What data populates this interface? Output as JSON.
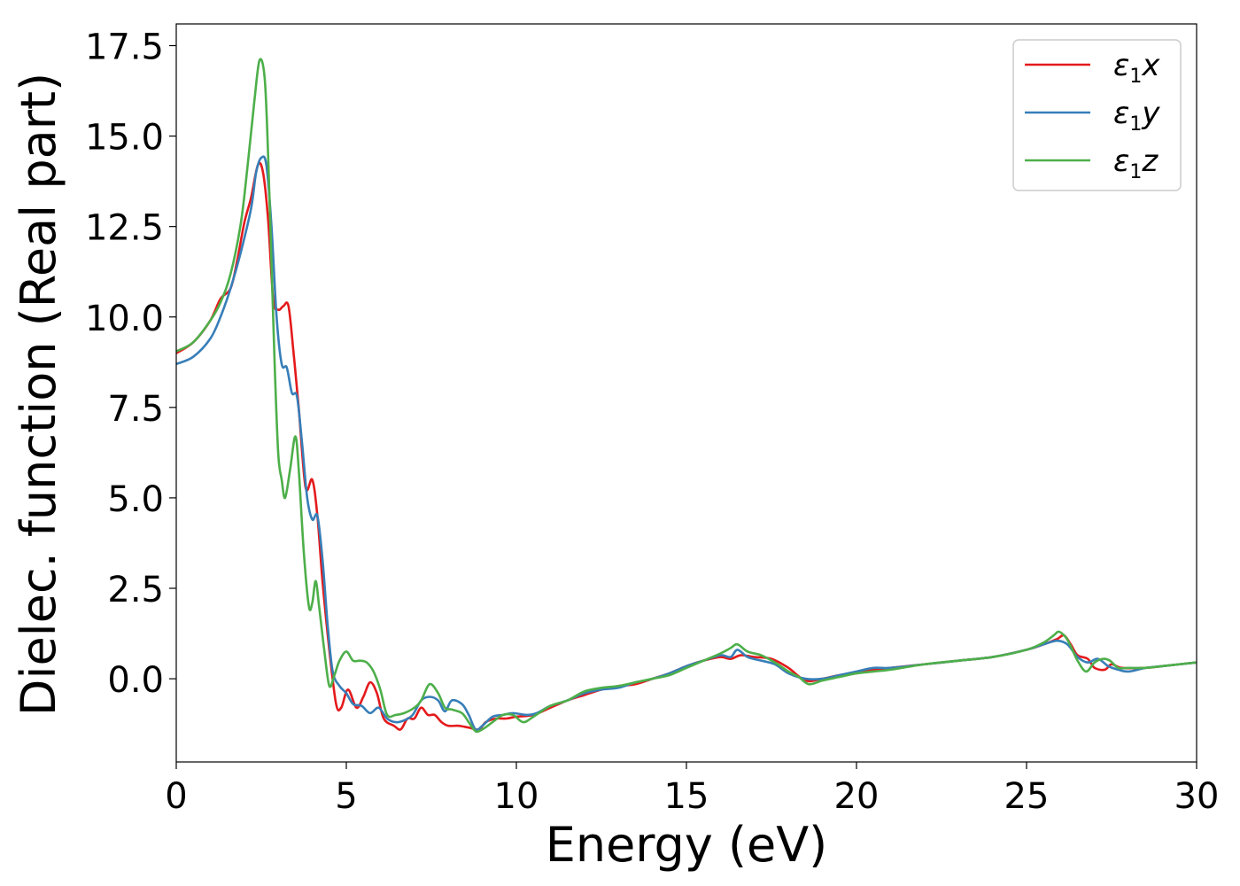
{
  "chart_data": {
    "type": "line",
    "xlabel": "Energy (eV)",
    "ylabel": "Dielec. function (Real part)",
    "xlim": [
      0,
      30
    ],
    "ylim": [
      -2.3,
      18.1
    ],
    "xticks": [
      0,
      5,
      10,
      15,
      20,
      25,
      30
    ],
    "xtick_labels": [
      "0",
      "5",
      "10",
      "15",
      "20",
      "25",
      "30"
    ],
    "yticks": [
      0.0,
      2.5,
      5.0,
      7.5,
      10.0,
      12.5,
      15.0,
      17.5
    ],
    "ytick_labels": [
      "0.0",
      "2.5",
      "5.0",
      "7.5",
      "10.0",
      "12.5",
      "15.0",
      "17.5"
    ],
    "grid": false,
    "legend_position": "top-right",
    "series": [
      {
        "name": "ε1x",
        "name_base": "ε",
        "name_sub": "1",
        "name_var": "x",
        "color": "#e41a1c",
        "points": [
          [
            0,
            9.0
          ],
          [
            0.5,
            9.3
          ],
          [
            1.0,
            9.9
          ],
          [
            1.3,
            10.5
          ],
          [
            1.6,
            10.8
          ],
          [
            1.8,
            11.6
          ],
          [
            2.0,
            12.6
          ],
          [
            2.2,
            13.3
          ],
          [
            2.4,
            14.2
          ],
          [
            2.55,
            14.0
          ],
          [
            2.7,
            12.7
          ],
          [
            2.85,
            10.5
          ],
          [
            3.0,
            10.2
          ],
          [
            3.15,
            10.3
          ],
          [
            3.3,
            10.3
          ],
          [
            3.45,
            9.0
          ],
          [
            3.6,
            7.5
          ],
          [
            3.8,
            5.3
          ],
          [
            4.0,
            5.5
          ],
          [
            4.15,
            4.5
          ],
          [
            4.3,
            2.7
          ],
          [
            4.5,
            0.8
          ],
          [
            4.7,
            -0.7
          ],
          [
            4.85,
            -0.8
          ],
          [
            5.05,
            -0.3
          ],
          [
            5.3,
            -0.8
          ],
          [
            5.5,
            -0.5
          ],
          [
            5.7,
            -0.1
          ],
          [
            5.9,
            -0.4
          ],
          [
            6.1,
            -1.1
          ],
          [
            6.4,
            -1.3
          ],
          [
            6.6,
            -1.4
          ],
          [
            6.8,
            -1.1
          ],
          [
            7.0,
            -1.1
          ],
          [
            7.2,
            -0.8
          ],
          [
            7.4,
            -1.0
          ],
          [
            7.6,
            -1.0
          ],
          [
            7.8,
            -1.2
          ],
          [
            8.0,
            -1.3
          ],
          [
            8.3,
            -1.3
          ],
          [
            8.6,
            -1.35
          ],
          [
            8.9,
            -1.4
          ],
          [
            9.1,
            -1.2
          ],
          [
            9.4,
            -1.1
          ],
          [
            9.7,
            -1.1
          ],
          [
            10.0,
            -1.05
          ],
          [
            10.5,
            -1.0
          ],
          [
            11.0,
            -0.8
          ],
          [
            11.5,
            -0.6
          ],
          [
            12.0,
            -0.45
          ],
          [
            12.5,
            -0.3
          ],
          [
            13.0,
            -0.2
          ],
          [
            13.5,
            -0.15
          ],
          [
            14.0,
            0.0
          ],
          [
            14.5,
            0.15
          ],
          [
            15.0,
            0.35
          ],
          [
            15.5,
            0.5
          ],
          [
            16.0,
            0.6
          ],
          [
            16.3,
            0.55
          ],
          [
            16.6,
            0.65
          ],
          [
            17.0,
            0.6
          ],
          [
            17.5,
            0.55
          ],
          [
            18.0,
            0.3
          ],
          [
            18.5,
            -0.05
          ],
          [
            19.0,
            0.0
          ],
          [
            19.5,
            0.1
          ],
          [
            20.0,
            0.15
          ],
          [
            20.5,
            0.25
          ],
          [
            21.0,
            0.3
          ],
          [
            22.0,
            0.4
          ],
          [
            23.0,
            0.5
          ],
          [
            24.0,
            0.6
          ],
          [
            25.0,
            0.8
          ],
          [
            25.5,
            0.95
          ],
          [
            25.9,
            1.1
          ],
          [
            26.1,
            1.2
          ],
          [
            26.3,
            0.95
          ],
          [
            26.5,
            0.65
          ],
          [
            26.8,
            0.55
          ],
          [
            27.0,
            0.3
          ],
          [
            27.3,
            0.25
          ],
          [
            27.5,
            0.4
          ],
          [
            27.8,
            0.3
          ],
          [
            28.5,
            0.3
          ],
          [
            29.0,
            0.35
          ],
          [
            30.0,
            0.45
          ]
        ]
      },
      {
        "name": "ε1y",
        "name_base": "ε",
        "name_sub": "1",
        "name_var": "y",
        "color": "#377eb8",
        "points": [
          [
            0,
            8.7
          ],
          [
            0.5,
            8.9
          ],
          [
            1.0,
            9.4
          ],
          [
            1.3,
            10.0
          ],
          [
            1.6,
            10.8
          ],
          [
            1.9,
            11.8
          ],
          [
            2.2,
            13.0
          ],
          [
            2.35,
            14.0
          ],
          [
            2.5,
            14.4
          ],
          [
            2.65,
            14.2
          ],
          [
            2.8,
            12.5
          ],
          [
            2.95,
            10.0
          ],
          [
            3.1,
            8.7
          ],
          [
            3.25,
            8.6
          ],
          [
            3.4,
            7.9
          ],
          [
            3.55,
            7.8
          ],
          [
            3.7,
            6.5
          ],
          [
            3.85,
            5.0
          ],
          [
            4.0,
            4.4
          ],
          [
            4.15,
            4.5
          ],
          [
            4.3,
            3.3
          ],
          [
            4.45,
            1.5
          ],
          [
            4.6,
            0.2
          ],
          [
            4.8,
            -0.2
          ],
          [
            5.0,
            -0.4
          ],
          [
            5.2,
            -0.7
          ],
          [
            5.45,
            -0.75
          ],
          [
            5.7,
            -0.95
          ],
          [
            5.95,
            -0.8
          ],
          [
            6.2,
            -1.1
          ],
          [
            6.45,
            -1.2
          ],
          [
            6.7,
            -1.15
          ],
          [
            6.95,
            -1.0
          ],
          [
            7.2,
            -0.6
          ],
          [
            7.45,
            -0.5
          ],
          [
            7.7,
            -0.6
          ],
          [
            7.9,
            -0.9
          ],
          [
            8.1,
            -0.6
          ],
          [
            8.4,
            -0.7
          ],
          [
            8.6,
            -1.0
          ],
          [
            8.8,
            -1.4
          ],
          [
            9.0,
            -1.3
          ],
          [
            9.3,
            -1.05
          ],
          [
            9.6,
            -1.0
          ],
          [
            9.9,
            -0.95
          ],
          [
            10.3,
            -1.0
          ],
          [
            10.6,
            -0.95
          ],
          [
            11.0,
            -0.75
          ],
          [
            11.5,
            -0.6
          ],
          [
            12.0,
            -0.4
          ],
          [
            12.5,
            -0.3
          ],
          [
            13.0,
            -0.25
          ],
          [
            13.5,
            -0.1
          ],
          [
            14.0,
            0.0
          ],
          [
            14.5,
            0.15
          ],
          [
            15.0,
            0.35
          ],
          [
            15.5,
            0.5
          ],
          [
            16.0,
            0.65
          ],
          [
            16.3,
            0.6
          ],
          [
            16.5,
            0.8
          ],
          [
            16.8,
            0.6
          ],
          [
            17.2,
            0.5
          ],
          [
            17.6,
            0.4
          ],
          [
            18.0,
            0.15
          ],
          [
            18.5,
            0.0
          ],
          [
            19.0,
            0.0
          ],
          [
            19.5,
            0.1
          ],
          [
            20.0,
            0.2
          ],
          [
            20.5,
            0.3
          ],
          [
            21.0,
            0.3
          ],
          [
            22.0,
            0.4
          ],
          [
            23.0,
            0.5
          ],
          [
            24.0,
            0.6
          ],
          [
            25.0,
            0.8
          ],
          [
            25.5,
            0.95
          ],
          [
            25.9,
            1.05
          ],
          [
            26.2,
            0.95
          ],
          [
            26.5,
            0.6
          ],
          [
            26.8,
            0.45
          ],
          [
            27.1,
            0.55
          ],
          [
            27.4,
            0.35
          ],
          [
            27.7,
            0.25
          ],
          [
            28.0,
            0.2
          ],
          [
            28.5,
            0.3
          ],
          [
            29.0,
            0.35
          ],
          [
            30.0,
            0.45
          ]
        ]
      },
      {
        "name": "ε1z",
        "name_base": "ε",
        "name_sub": "1",
        "name_var": "z",
        "color": "#4daf4a",
        "points": [
          [
            0,
            9.05
          ],
          [
            0.5,
            9.3
          ],
          [
            1.0,
            9.9
          ],
          [
            1.3,
            10.4
          ],
          [
            1.6,
            11.2
          ],
          [
            1.9,
            12.6
          ],
          [
            2.1,
            14.2
          ],
          [
            2.3,
            16.0
          ],
          [
            2.45,
            17.1
          ],
          [
            2.6,
            16.6
          ],
          [
            2.7,
            14.5
          ],
          [
            2.8,
            11.5
          ],
          [
            2.9,
            8.5
          ],
          [
            3.0,
            6.2
          ],
          [
            3.1,
            5.5
          ],
          [
            3.2,
            5.0
          ],
          [
            3.35,
            5.8
          ],
          [
            3.5,
            6.7
          ],
          [
            3.6,
            5.8
          ],
          [
            3.75,
            3.5
          ],
          [
            3.9,
            2.0
          ],
          [
            4.0,
            2.1
          ],
          [
            4.1,
            2.7
          ],
          [
            4.2,
            2.0
          ],
          [
            4.35,
            0.8
          ],
          [
            4.5,
            -0.2
          ],
          [
            4.65,
            0.1
          ],
          [
            4.8,
            0.5
          ],
          [
            5.0,
            0.75
          ],
          [
            5.2,
            0.5
          ],
          [
            5.4,
            0.5
          ],
          [
            5.6,
            0.45
          ],
          [
            5.8,
            0.2
          ],
          [
            6.0,
            -0.3
          ],
          [
            6.2,
            -1.0
          ],
          [
            6.45,
            -1.0
          ],
          [
            6.7,
            -0.95
          ],
          [
            7.0,
            -0.8
          ],
          [
            7.2,
            -0.6
          ],
          [
            7.45,
            -0.15
          ],
          [
            7.7,
            -0.4
          ],
          [
            7.9,
            -0.8
          ],
          [
            8.1,
            -0.85
          ],
          [
            8.4,
            -0.95
          ],
          [
            8.6,
            -1.2
          ],
          [
            8.8,
            -1.45
          ],
          [
            9.0,
            -1.4
          ],
          [
            9.3,
            -1.2
          ],
          [
            9.6,
            -1.0
          ],
          [
            9.9,
            -1.0
          ],
          [
            10.2,
            -1.2
          ],
          [
            10.5,
            -1.05
          ],
          [
            11.0,
            -0.75
          ],
          [
            11.5,
            -0.6
          ],
          [
            12.0,
            -0.35
          ],
          [
            12.5,
            -0.25
          ],
          [
            13.0,
            -0.2
          ],
          [
            13.5,
            -0.1
          ],
          [
            14.0,
            0.0
          ],
          [
            14.5,
            0.1
          ],
          [
            15.0,
            0.3
          ],
          [
            15.5,
            0.5
          ],
          [
            16.0,
            0.7
          ],
          [
            16.3,
            0.85
          ],
          [
            16.5,
            0.95
          ],
          [
            16.8,
            0.75
          ],
          [
            17.2,
            0.65
          ],
          [
            17.6,
            0.45
          ],
          [
            18.0,
            0.2
          ],
          [
            18.3,
            0.05
          ],
          [
            18.6,
            -0.15
          ],
          [
            19.0,
            -0.05
          ],
          [
            19.5,
            0.05
          ],
          [
            20.0,
            0.15
          ],
          [
            20.5,
            0.2
          ],
          [
            21.0,
            0.25
          ],
          [
            22.0,
            0.4
          ],
          [
            23.0,
            0.5
          ],
          [
            24.0,
            0.6
          ],
          [
            25.0,
            0.8
          ],
          [
            25.5,
            1.0
          ],
          [
            25.8,
            1.2
          ],
          [
            25.95,
            1.3
          ],
          [
            26.15,
            1.15
          ],
          [
            26.3,
            0.9
          ],
          [
            26.5,
            0.5
          ],
          [
            26.75,
            0.2
          ],
          [
            27.0,
            0.45
          ],
          [
            27.25,
            0.55
          ],
          [
            27.45,
            0.5
          ],
          [
            27.7,
            0.3
          ],
          [
            28.0,
            0.3
          ],
          [
            28.5,
            0.3
          ],
          [
            29.0,
            0.35
          ],
          [
            30.0,
            0.45
          ]
        ]
      }
    ]
  }
}
